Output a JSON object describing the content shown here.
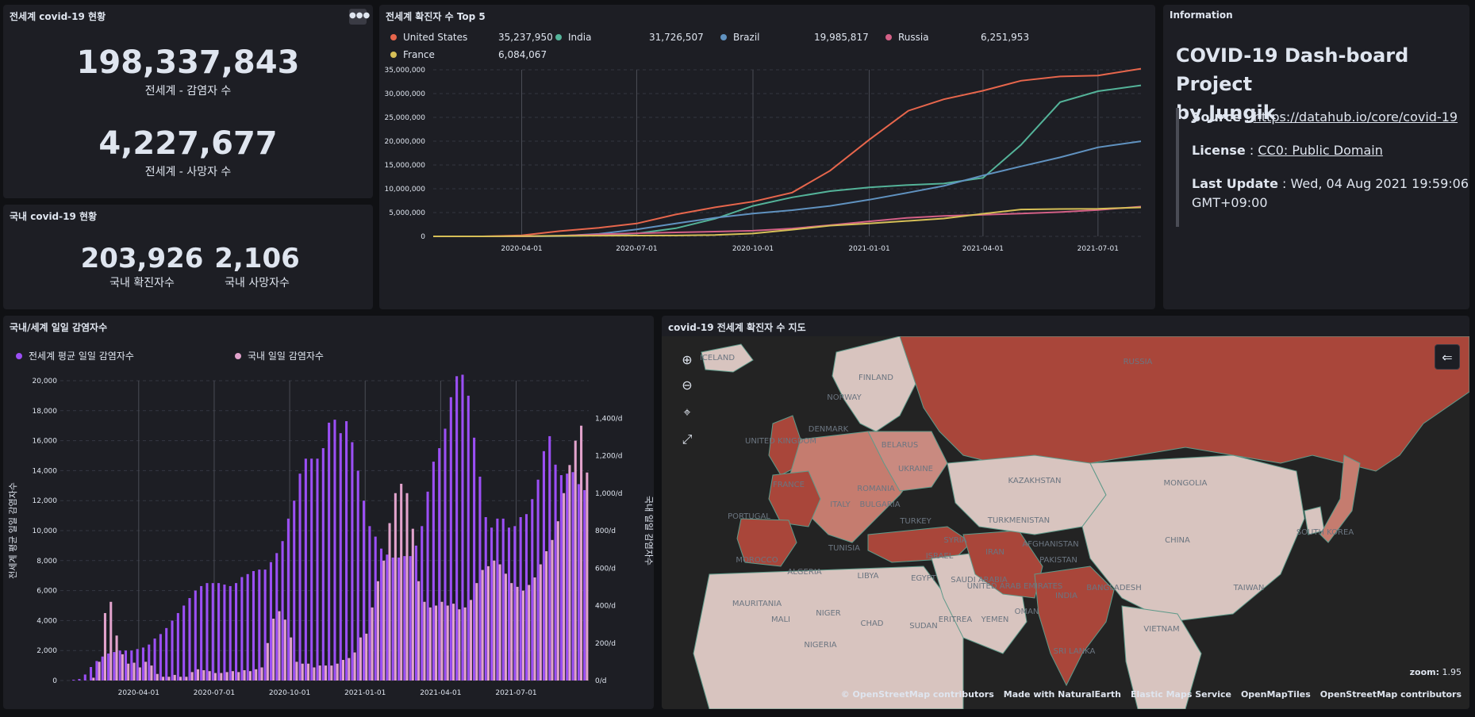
{
  "world_status": {
    "title": "전세계 covid-19 현황",
    "menu_icon": "ellipsis-icon",
    "confirmed": "198,337,843",
    "confirmed_label": "전세계 - 감염자 수",
    "deaths": "4,227,677",
    "deaths_label": "전세계 - 사망자 수"
  },
  "korea_status": {
    "title": "국내 covid-19 현황",
    "confirmed": "203,926",
    "confirmed_label": "국내 확진자수",
    "deaths": "2,106",
    "deaths_label": "국내 사망자수"
  },
  "top5": {
    "title": "전세계 확진자 수 Top 5",
    "legend": [
      {
        "name": "United States",
        "value": "35,237,950",
        "color": "#e7664c"
      },
      {
        "name": "India",
        "value": "31,726,507",
        "color": "#54b399"
      },
      {
        "name": "Brazil",
        "value": "19,985,817",
        "color": "#6092c0"
      },
      {
        "name": "Russia",
        "value": "6,251,953",
        "color": "#d36086"
      },
      {
        "name": "France",
        "value": "6,084,067",
        "color": "#d6bf57"
      }
    ]
  },
  "info": {
    "panel_title": "Information",
    "heading_line1": "COVID-19 Dash-board Project",
    "heading_line2": "by Jungik",
    "source_label": "Source",
    "source_link": "https://datahub.io/core/covid-19",
    "license_label": "License",
    "license_link": "CC0: Public Domain",
    "update_label": "Last Update",
    "update_value": "Wed, 04 Aug 2021 19:59:06 GMT+09:00"
  },
  "daily": {
    "title": "국내/세계 일일 감염자수",
    "legend_world": "전세계 평균 일일 감염자수",
    "legend_korea": "국내 일일 감염자수",
    "color_world": "#9b4ff5",
    "color_korea": "#e2a3cc"
  },
  "map": {
    "title": "covid-19 전세계 확진자 수 지도",
    "zoom_label": "zoom:",
    "zoom_value": "1.95",
    "attribution": [
      "© OpenStreetMap contributors",
      "Made with NaturalEarth",
      "Elastic Maps Service",
      "OpenMapTiles",
      "OpenStreetMap contributors"
    ],
    "labels": [
      "RUSSIA",
      "FINLAND",
      "ICELAND",
      "NORWAY",
      "UNITED KINGDOM",
      "DENMARK",
      "BELARUS",
      "UKRAINE",
      "FRANCE",
      "ROMANIA",
      "BULGARIA",
      "ITALY",
      "PORTUGAL",
      "TURKEY",
      "SYRIA",
      "KAZAKHSTAN",
      "MONGOLIA",
      "TURKMENISTAN",
      "AFGHANISTAN",
      "PAKISTAN",
      "IRAN",
      "CHINA",
      "SOUTH KOREA",
      "MOROCCO",
      "ALGERIA",
      "LIBYA",
      "EGYPT",
      "SAUDI ARABIA",
      "UNITED ARAB EMIRATES",
      "YEMEN",
      "ERITREA",
      "SUDAN",
      "CHAD",
      "NIGER",
      "MALI",
      "MAURITANIA",
      "NIGERIA",
      "INDIA",
      "BANGLADESH",
      "TAIWAN",
      "VIETNAM",
      "SRI LANKA",
      "TUNISIA",
      "ISRAEL",
      "OMAN"
    ]
  },
  "chart_data": [
    {
      "type": "line",
      "title": "전세계 확진자 수 Top 5",
      "x_ticks": [
        "2020-04-01",
        "2020-07-01",
        "2020-10-01",
        "2021-01-01",
        "2021-04-01",
        "2021-07-01"
      ],
      "ylim": [
        0,
        35000000
      ],
      "y_ticks": [
        "0",
        "5,000,000",
        "10,000,000",
        "15,000,000",
        "20,000,000",
        "25,000,000",
        "30,000,000",
        "35,000,000"
      ],
      "x": [
        "2020-01-22",
        "2020-03-01",
        "2020-04-01",
        "2020-05-01",
        "2020-06-01",
        "2020-07-01",
        "2020-08-01",
        "2020-09-01",
        "2020-10-01",
        "2020-11-01",
        "2020-12-01",
        "2021-01-01",
        "2021-02-01",
        "2021-03-01",
        "2021-04-01",
        "2021-05-01",
        "2021-06-01",
        "2021-07-01",
        "2021-08-04"
      ],
      "series": [
        {
          "name": "United States",
          "values": [
            0,
            0,
            200000,
            1100000,
            1800000,
            2700000,
            4600000,
            6100000,
            7300000,
            9200000,
            13800000,
            20300000,
            26400000,
            28800000,
            30600000,
            32700000,
            33600000,
            33800000,
            35237950
          ]
        },
        {
          "name": "India",
          "values": [
            0,
            0,
            2000,
            35000,
            200000,
            600000,
            1700000,
            3700000,
            6400000,
            8200000,
            9500000,
            10300000,
            10800000,
            11100000,
            12300000,
            19200000,
            28200000,
            30500000,
            31726507
          ]
        },
        {
          "name": "Brazil",
          "values": [
            0,
            0,
            6000,
            90000,
            520000,
            1450000,
            2700000,
            3900000,
            4800000,
            5500000,
            6400000,
            7700000,
            9200000,
            10600000,
            12800000,
            14700000,
            16600000,
            18700000,
            19985817
          ]
        },
        {
          "name": "Russia",
          "values": [
            0,
            0,
            3000,
            110000,
            420000,
            650000,
            840000,
            1000000,
            1180000,
            1650000,
            2350000,
            3150000,
            3900000,
            4300000,
            4550000,
            4800000,
            5100000,
            5550000,
            6251953
          ]
        },
        {
          "name": "France",
          "values": [
            0,
            0,
            57000,
            130000,
            150000,
            165000,
            190000,
            290000,
            600000,
            1400000,
            2250000,
            2700000,
            3250000,
            3750000,
            4750000,
            5650000,
            5750000,
            5800000,
            6084067
          ]
        }
      ]
    },
    {
      "type": "bar",
      "title": "국내/세계 일일 감염자수",
      "x_ticks": [
        "2020-04-01",
        "2020-07-01",
        "2020-10-01",
        "2021-01-01",
        "2021-04-01",
        "2021-07-01"
      ],
      "ylabel": "전세계 평균 일일 감염자수",
      "y2label": "국내 일일 감염자수",
      "ylim": [
        0,
        20000
      ],
      "y_ticks": [
        "0",
        "2,000",
        "4,000",
        "6,000",
        "8,000",
        "10,000",
        "12,000",
        "14,000",
        "16,000",
        "18,000",
        "20,000"
      ],
      "y2lim": [
        0,
        1600
      ],
      "y2_ticks": [
        "0/d",
        "200/d",
        "400/d",
        "600/d",
        "800/d",
        "1,000/d",
        "1,200/d",
        "1,400/d"
      ],
      "series": [
        {
          "name": "전세계 평균 일일 감염자수",
          "values": [
            0,
            0,
            50,
            100,
            400,
            900,
            1300,
            1600,
            1800,
            1900,
            2000,
            2000,
            2000,
            2100,
            2200,
            2400,
            2800,
            3100,
            3500,
            4000,
            4500,
            5000,
            5500,
            6000,
            6300,
            6500,
            6500,
            6500,
            6400,
            6300,
            6500,
            6900,
            7100,
            7300,
            7400,
            7400,
            7900,
            8500,
            9300,
            10800,
            12000,
            13800,
            14800,
            14800,
            14800,
            15500,
            17200,
            17400,
            16500,
            17300,
            15900,
            14000,
            12000,
            10300,
            9600,
            8800,
            8400,
            8200,
            8200,
            8300,
            8300,
            9000,
            10300,
            12600,
            14600,
            15500,
            16800,
            18900,
            20300,
            20400,
            19000,
            16200,
            13600,
            10900,
            10200,
            10800,
            10800,
            10200,
            10300,
            10900,
            11100,
            12100,
            13400,
            15300,
            16300,
            14400,
            13700,
            13800,
            13900,
            13100,
            12700
          ]
        },
        {
          "name": "국내 일일 감염자수",
          "values": [
            0,
            0,
            0,
            0,
            0,
            15,
            100,
            360,
            420,
            240,
            140,
            90,
            95,
            70,
            100,
            80,
            35,
            20,
            20,
            30,
            20,
            20,
            45,
            60,
            55,
            50,
            40,
            40,
            45,
            50,
            45,
            55,
            50,
            60,
            70,
            200,
            330,
            370,
            325,
            230,
            100,
            90,
            90,
            70,
            80,
            80,
            80,
            90,
            110,
            120,
            150,
            230,
            250,
            390,
            530,
            640,
            840,
            1000,
            1050,
            1000,
            810,
            530,
            420,
            390,
            400,
            420,
            400,
            410,
            380,
            390,
            430,
            520,
            590,
            610,
            640,
            620,
            570,
            520,
            500,
            480,
            510,
            550,
            620,
            690,
            750,
            850,
            1000,
            1150,
            1280,
            1360,
            1110
          ]
        }
      ]
    }
  ]
}
